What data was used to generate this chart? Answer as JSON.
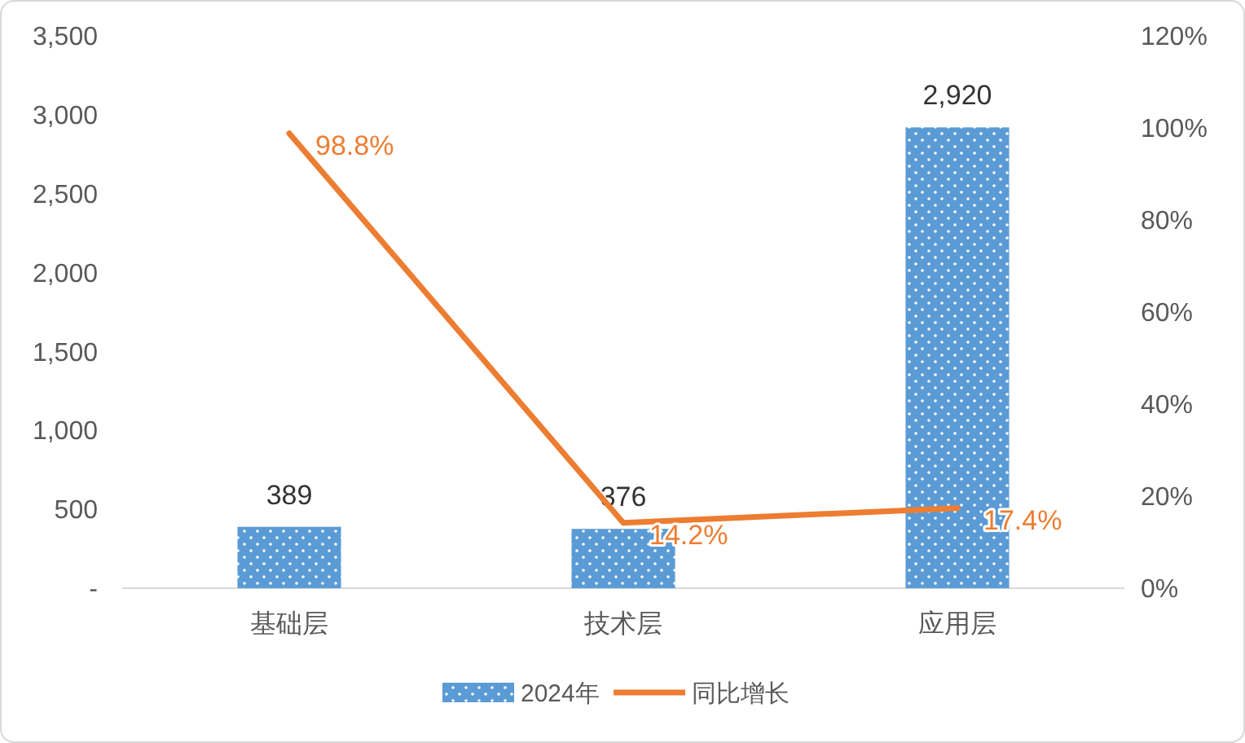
{
  "chart_data": {
    "type": "bar",
    "categories": [
      "基础层",
      "技术层",
      "应用层"
    ],
    "series": [
      {
        "name": "2024年",
        "color": "#5b9bd5",
        "values": [
          389,
          376,
          2920
        ],
        "value_labels": [
          "389",
          "376",
          "2,920"
        ]
      },
      {
        "name": "同比增长",
        "type": "line",
        "axis": "y2",
        "color": "#ed7d31",
        "values": [
          98.8,
          14.2,
          17.4
        ],
        "value_labels": [
          "98.8%",
          "14.2%",
          "17.4%"
        ]
      }
    ],
    "ylim": [
      0,
      3500
    ],
    "yticks": [
      {
        "value": 0,
        "label": "-"
      },
      500,
      {
        "value": 1000,
        "label": "1,000"
      },
      {
        "value": 1500,
        "label": "1,500"
      },
      {
        "value": 2000,
        "label": "2,000"
      },
      {
        "value": 2500,
        "label": "2,500"
      },
      {
        "value": 3000,
        "label": "3,000"
      },
      {
        "value": 3500,
        "label": "3,500"
      }
    ],
    "y2lim": [
      0,
      120
    ],
    "y2ticks": [
      {
        "value": 0,
        "label": "0%"
      },
      {
        "value": 20,
        "label": "20%"
      },
      {
        "value": 40,
        "label": "40%"
      },
      {
        "value": 60,
        "label": "60%"
      },
      {
        "value": 80,
        "label": "80%"
      },
      {
        "value": 100,
        "label": "100%"
      },
      {
        "value": 120,
        "label": "120%"
      }
    ],
    "legend": "bottom",
    "grid": false
  }
}
